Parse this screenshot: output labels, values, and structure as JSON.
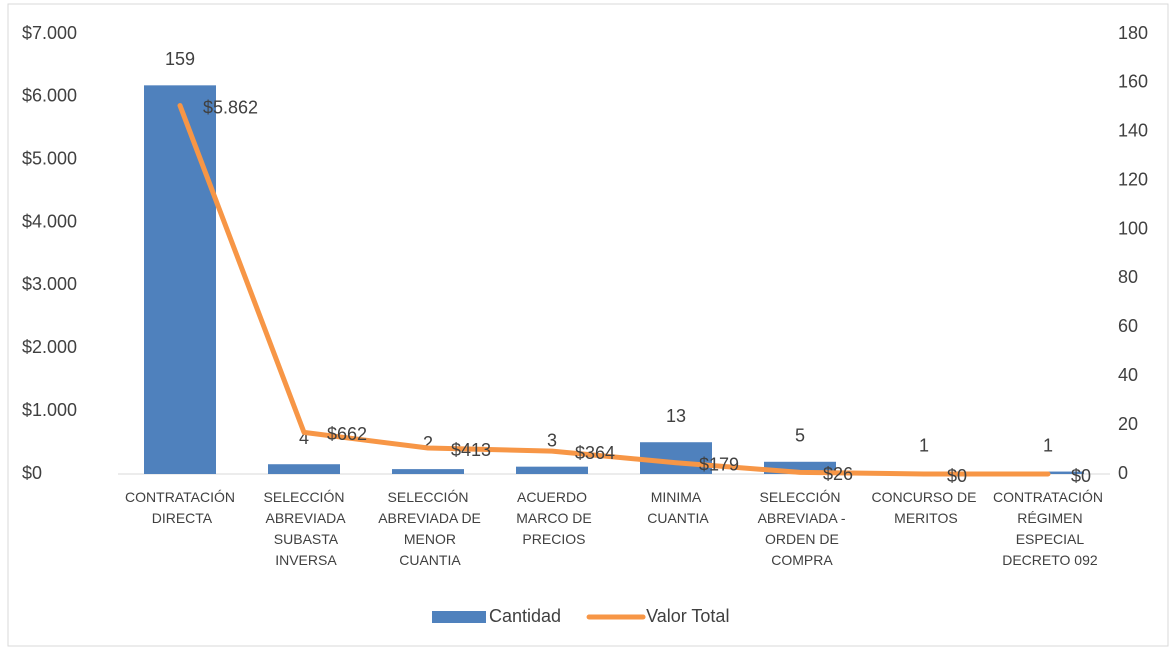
{
  "chart_data": {
    "type": "combo",
    "categories": [
      "CONTRATACIÓN DIRECTA",
      "SELECCIÓN ABREVIADA SUBASTA INVERSA",
      "SELECCIÓN ABREVIADA DE MENOR CUANTIA",
      "ACUERDO MARCO DE PRECIOS",
      "MINIMA CUANTIA",
      "SELECCIÓN ABREVIADA - ORDEN DE COMPRA",
      "CONCURSO DE MERITOS",
      "CONTRATACIÓN RÉGIMEN ESPECIAL DECRETO 092"
    ],
    "series": [
      {
        "name": "Cantidad",
        "type": "bar",
        "axis": "y2",
        "color": "#4f81bd",
        "values": [
          159,
          4,
          2,
          3,
          13,
          5,
          1,
          1
        ]
      },
      {
        "name": "Valor Total",
        "type": "line",
        "axis": "y",
        "color": "#f79646",
        "values": [
          5862,
          662,
          413,
          364,
          179,
          26,
          0,
          0
        ],
        "value_labels": [
          "$5.862",
          "$662",
          "$413",
          "$364",
          "$179",
          "$26",
          "$0",
          "$0"
        ]
      }
    ],
    "ylim": [
      0,
      7000
    ],
    "yticks": [
      {
        "value": 0,
        "label": "$0"
      },
      {
        "value": 1000,
        "label": "$1.000"
      },
      {
        "value": 2000,
        "label": "$2.000"
      },
      {
        "value": 3000,
        "label": "$3.000"
      },
      {
        "value": 4000,
        "label": "$4.000"
      },
      {
        "value": 5000,
        "label": "$5.000"
      },
      {
        "value": 6000,
        "label": "$6.000"
      },
      {
        "value": 7000,
        "label": "$7.000"
      }
    ],
    "y2lim": [
      0,
      180
    ],
    "y2ticks": [
      0,
      20,
      40,
      60,
      80,
      100,
      120,
      140,
      160,
      180
    ],
    "legend": "bottom"
  }
}
